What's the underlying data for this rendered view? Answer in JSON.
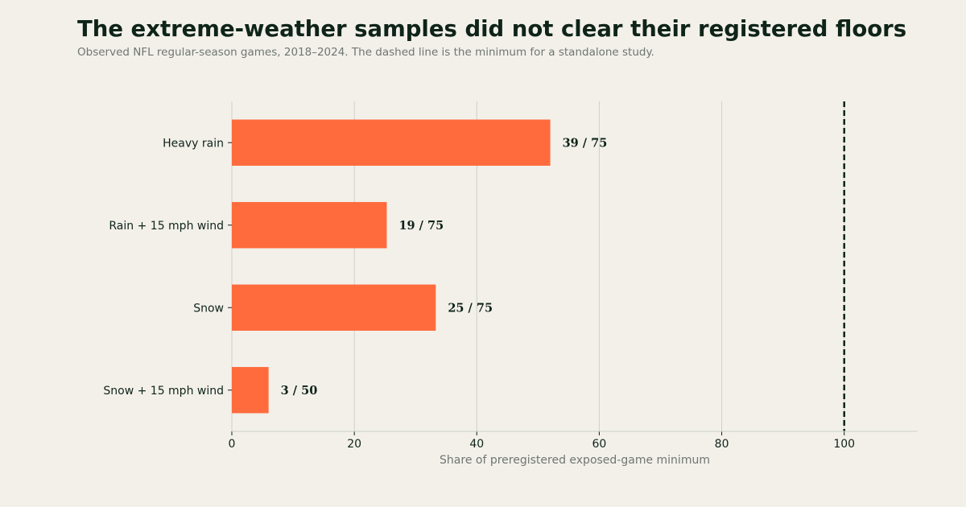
{
  "title": "The extreme-weather samples did not clear their registered floors",
  "subtitle": "Observed NFL regular-season games, 2018–2024. The dashed line is the minimum for a standalone study.",
  "colors": {
    "background": "#f3f0ea",
    "bar": "#ff6b3d",
    "text": "#0f2419",
    "muted": "#6f7671",
    "grid": "#cfcfca",
    "reference": "#0f2419"
  },
  "chart_data": {
    "type": "bar",
    "orientation": "horizontal",
    "categories": [
      "Heavy rain",
      "Rain + 15 mph wind",
      "Snow",
      "Snow + 15 mph wind"
    ],
    "values": [
      52.0,
      25.3,
      33.3,
      6.0
    ],
    "value_labels": [
      "39 / 75",
      "19 / 75",
      "25 / 75",
      "3 / 50"
    ],
    "xlabel": "Share of preregistered exposed-game minimum",
    "ylabel": "",
    "xlim": [
      0,
      112
    ],
    "xticks": [
      0,
      20,
      40,
      60,
      80,
      100
    ],
    "reference_line": {
      "value": 100,
      "style": "dashed"
    },
    "grid": "vertical"
  }
}
